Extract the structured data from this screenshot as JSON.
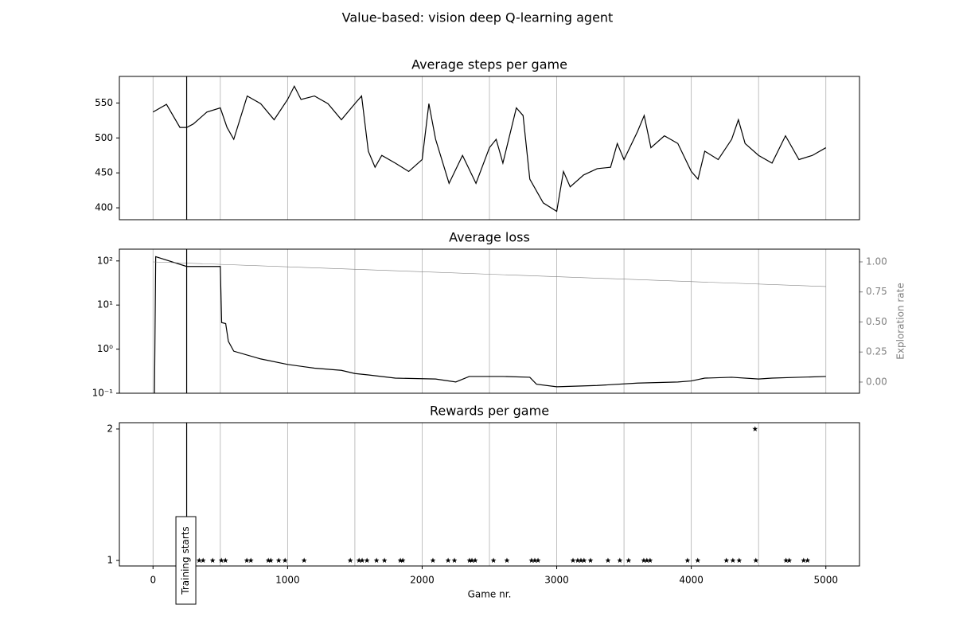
{
  "title": "Value-based: vision deep Q-learning agent",
  "chart_data": [
    {
      "type": "line",
      "title": "Average steps per game",
      "x": [
        0,
        100,
        200,
        250,
        300,
        400,
        500,
        550,
        600,
        700,
        800,
        900,
        1000,
        1050,
        1100,
        1200,
        1300,
        1400,
        1500,
        1550,
        1600,
        1650,
        1700,
        1800,
        1900,
        2000,
        2050,
        2100,
        2200,
        2300,
        2400,
        2500,
        2550,
        2600,
        2700,
        2750,
        2800,
        2900,
        3000,
        3050,
        3100,
        3200,
        3300,
        3400,
        3450,
        3500,
        3600,
        3650,
        3700,
        3800,
        3900,
        4000,
        4050,
        4100,
        4200,
        4300,
        4350,
        4400,
        4500,
        4600,
        4700,
        4800,
        4900,
        5000
      ],
      "values": [
        537,
        548,
        515,
        515,
        520,
        537,
        543,
        515,
        498,
        560,
        549,
        526,
        555,
        574,
        555,
        560,
        549,
        526,
        549,
        560,
        481,
        458,
        475,
        464,
        452,
        469,
        549,
        498,
        435,
        475,
        435,
        486,
        498,
        464,
        543,
        532,
        441,
        407,
        395,
        452,
        430,
        447,
        456,
        458,
        492,
        469,
        509,
        532,
        486,
        503,
        492,
        452,
        441,
        481,
        469,
        498,
        526,
        492,
        475,
        464,
        503,
        469,
        475,
        486
      ],
      "color": "#000000",
      "xlim": [
        -250,
        5250
      ],
      "xgrid": [
        0,
        500,
        1000,
        1500,
        2000,
        2500,
        3000,
        3500,
        4000,
        4500,
        5000
      ],
      "ylim": [
        383,
        588
      ],
      "yticks": [
        400,
        450,
        500,
        550
      ],
      "vline": 250
    },
    {
      "type": "line",
      "title": "Average loss",
      "yscale": "log",
      "series": [
        {
          "x": [
            0,
            10,
            20,
            250,
            500,
            510,
            540,
            560,
            600,
            800,
            1000,
            1200,
            1400,
            1500,
            1600,
            1800,
            2100,
            2250,
            2350,
            2600,
            2800,
            2850,
            3000,
            3300,
            3600,
            3900,
            4000,
            4100,
            4300,
            4500,
            4600,
            4800,
            5000
          ],
          "values": [
            0.05,
            0.05,
            125,
            75,
            75,
            4,
            3.8,
            1.5,
            0.9,
            0.6,
            0.45,
            0.37,
            0.33,
            0.28,
            0.26,
            0.22,
            0.21,
            0.18,
            0.24,
            0.24,
            0.23,
            0.16,
            0.14,
            0.15,
            0.17,
            0.18,
            0.19,
            0.22,
            0.23,
            0.21,
            0.22,
            0.23,
            0.24
          ],
          "color": "#000000"
        },
        {
          "x": [
            0,
            5000
          ],
          "values": [
            1.0,
            0.795
          ],
          "color": "#808080",
          "axis": "y2"
        }
      ],
      "xlim": [
        -250,
        5250
      ],
      "xgrid": [
        0,
        500,
        1000,
        1500,
        2000,
        2500,
        3000,
        3500,
        4000,
        4500,
        5000
      ],
      "ylim": [
        0.1,
        185
      ],
      "yticks": [
        {
          "value": 0.1,
          "label": "10⁻¹"
        },
        {
          "value": 1,
          "label": "10⁰"
        },
        {
          "value": 10,
          "label": "10¹"
        },
        {
          "value": 100,
          "label": "10²"
        }
      ],
      "y2label": "Exploration rate",
      "y2color": "#808080",
      "y2lim": [
        -0.093,
        1.106
      ],
      "y2ticks": [
        {
          "value": 0,
          "label": "0.00"
        },
        {
          "value": 0.25,
          "label": "0.25"
        },
        {
          "value": 0.5,
          "label": "0.50"
        },
        {
          "value": 0.75,
          "label": "0.75"
        },
        {
          "value": 1,
          "label": "1.00"
        }
      ],
      "vline": 250
    },
    {
      "type": "scatter",
      "title": "Rewards per game",
      "marker": "star",
      "x": [
        343,
        372,
        443,
        508,
        538,
        697,
        727,
        857,
        875,
        934,
        981,
        1123,
        1466,
        1531,
        1554,
        1590,
        1661,
        1720,
        1838,
        1856,
        2080,
        2193,
        2240,
        2352,
        2370,
        2394,
        2530,
        2630,
        2813,
        2837,
        2861,
        3121,
        3156,
        3180,
        3203,
        3251,
        3381,
        3469,
        3534,
        3647,
        3670,
        3694,
        3972,
        4048,
        4261,
        4309,
        4356,
        4474,
        4480,
        4704,
        4728,
        4835,
        4864
      ],
      "values": [
        1,
        1,
        1,
        1,
        1,
        1,
        1,
        1,
        1,
        1,
        1,
        1,
        1,
        1,
        1,
        1,
        1,
        1,
        1,
        1,
        1,
        1,
        1,
        1,
        1,
        1,
        1,
        1,
        1,
        1,
        1,
        1,
        1,
        1,
        1,
        1,
        1,
        1,
        1,
        1,
        1,
        1,
        1,
        1,
        1,
        1,
        1,
        2,
        1,
        1,
        1,
        1,
        1
      ],
      "color": "#000000",
      "xlim": [
        -250,
        5250
      ],
      "xgrid": [
        0,
        500,
        1000,
        1500,
        2000,
        2500,
        3000,
        3500,
        4000,
        4500,
        5000
      ],
      "xticks": [
        0,
        1000,
        2000,
        3000,
        4000,
        5000
      ],
      "xlabel": "Game nr.",
      "ylim": [
        0.958,
        2.048
      ],
      "yticks": [
        1,
        2
      ],
      "vline": 250,
      "annotation": "Training starts"
    }
  ]
}
